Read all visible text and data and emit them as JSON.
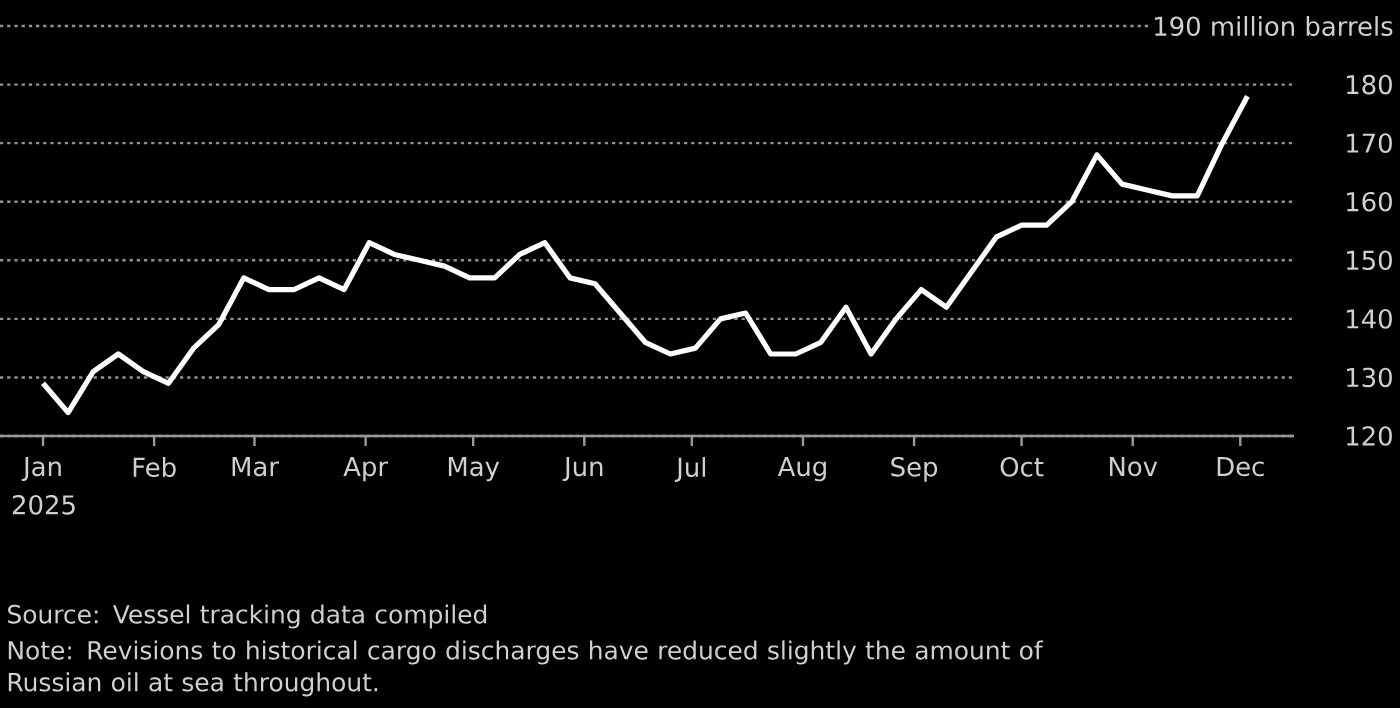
{
  "chart_data": {
    "type": "line",
    "x": [
      "2025-01-01",
      "2025-01-08",
      "2025-01-15",
      "2025-01-22",
      "2025-01-29",
      "2025-02-05",
      "2025-02-12",
      "2025-02-19",
      "2025-02-26",
      "2025-03-05",
      "2025-03-12",
      "2025-03-19",
      "2025-03-26",
      "2025-04-02",
      "2025-04-09",
      "2025-04-16",
      "2025-04-23",
      "2025-04-30",
      "2025-05-07",
      "2025-05-14",
      "2025-05-21",
      "2025-05-28",
      "2025-06-04",
      "2025-06-11",
      "2025-06-18",
      "2025-06-25",
      "2025-07-02",
      "2025-07-09",
      "2025-07-16",
      "2025-07-23",
      "2025-07-30",
      "2025-08-06",
      "2025-08-13",
      "2025-08-20",
      "2025-08-27",
      "2025-09-03",
      "2025-09-10",
      "2025-09-17",
      "2025-09-24",
      "2025-10-01",
      "2025-10-08",
      "2025-10-15",
      "2025-10-22",
      "2025-10-29",
      "2025-11-05",
      "2025-11-12",
      "2025-11-19",
      "2025-11-26",
      "2025-12-03"
    ],
    "values": [
      129,
      124,
      131,
      134,
      131,
      129,
      135,
      139,
      147,
      145,
      145,
      147,
      145,
      153,
      151,
      150,
      149,
      147,
      147,
      151,
      153,
      147,
      146,
      141,
      136,
      134,
      135,
      140,
      141,
      134,
      134,
      136,
      142,
      134,
      140,
      145,
      142,
      148,
      154,
      156,
      156,
      160,
      168,
      163,
      162,
      161,
      161,
      170,
      178
    ],
    "color": "#ffffff",
    "line_style": "solid",
    "xlim": [
      "2024-12-20",
      "2025-12-16"
    ],
    "ylim": [
      120,
      190
    ],
    "xticks": [
      {
        "value": "2025-01-01",
        "label": "Jan"
      },
      {
        "value": "2025-02-01",
        "label": "Feb"
      },
      {
        "value": "2025-03-01",
        "label": "Mar"
      },
      {
        "value": "2025-04-01",
        "label": "Apr"
      },
      {
        "value": "2025-05-01",
        "label": "May"
      },
      {
        "value": "2025-06-01",
        "label": "Jun"
      },
      {
        "value": "2025-07-01",
        "label": "Jul"
      },
      {
        "value": "2025-08-01",
        "label": "Aug"
      },
      {
        "value": "2025-09-01",
        "label": "Sep"
      },
      {
        "value": "2025-10-01",
        "label": "Oct"
      },
      {
        "value": "2025-11-01",
        "label": "Nov"
      },
      {
        "value": "2025-12-01",
        "label": "Dec"
      }
    ],
    "yticks": [
      120,
      130,
      140,
      150,
      160,
      170,
      180,
      {
        "value": 190,
        "label": "190 million barrels"
      }
    ],
    "xlabel": "2025",
    "grid": "y",
    "annotations": [
      "Source: Vessel tracking data compiled",
      "Note: Revisions to historical cargo discharges have reduced slightly the amount of Russian oil at sea throughout."
    ]
  }
}
